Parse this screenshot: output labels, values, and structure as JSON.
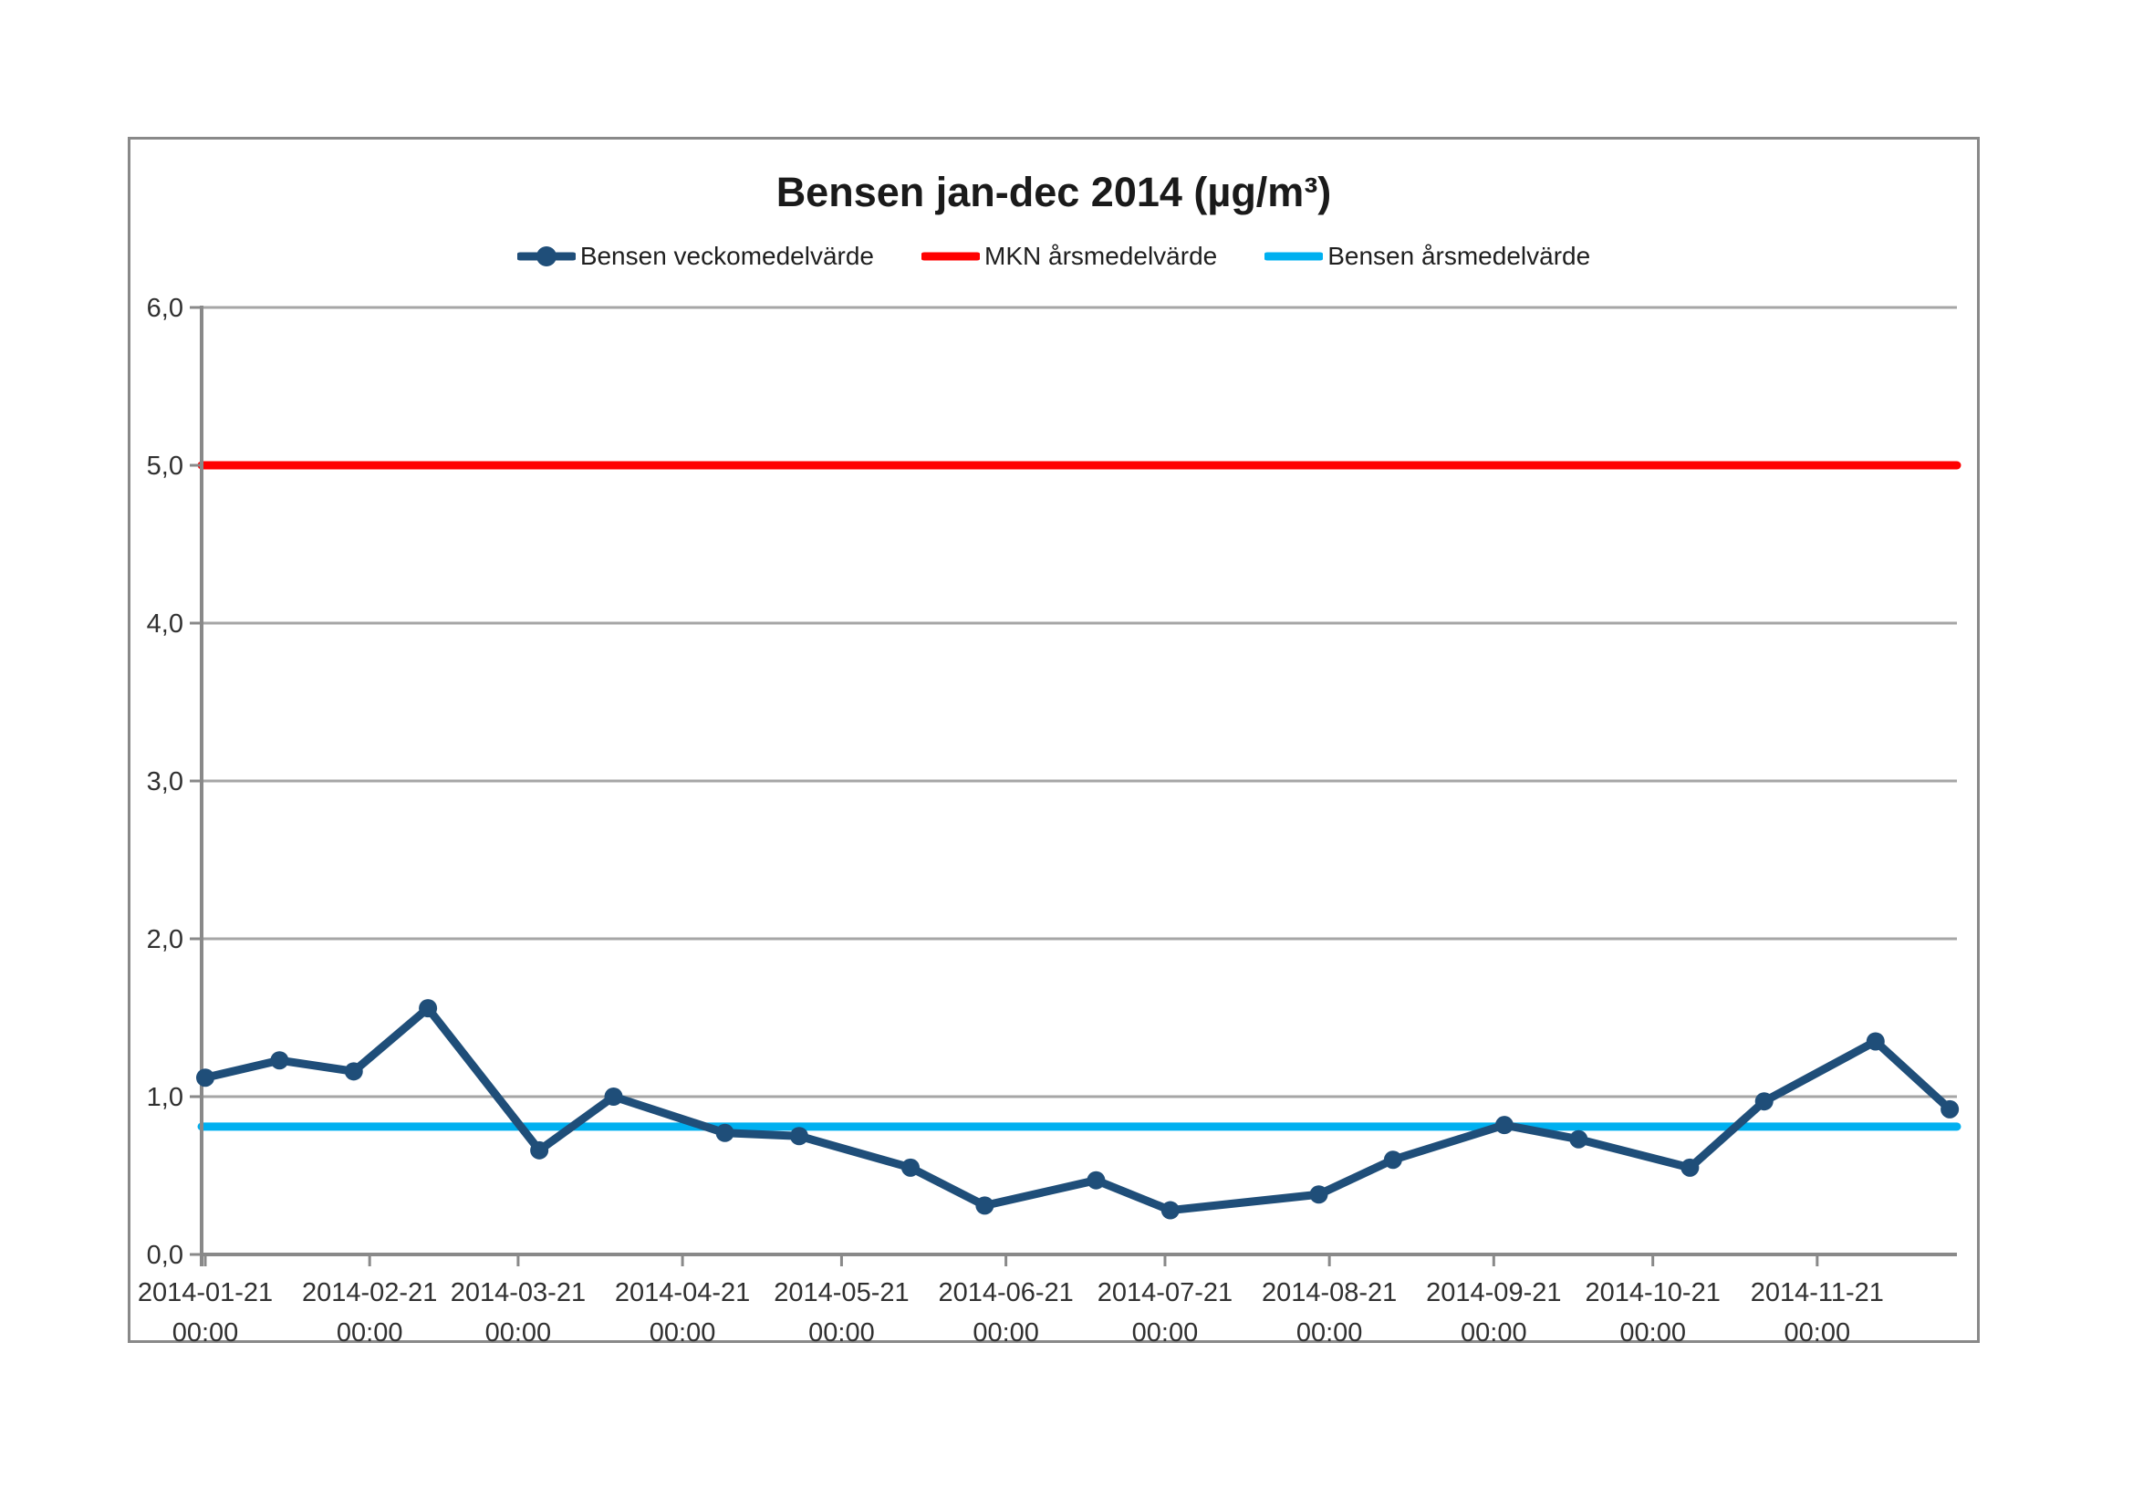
{
  "title": "Bensen jan-dec 2014 (µg/m³)",
  "legend": [
    {
      "label": "Bensen veckomedelvärde",
      "color": "#1F4E79",
      "marker": "line-with-circle"
    },
    {
      "label": "MKN årsmedelvärde",
      "color": "#FF0000",
      "marker": "line"
    },
    {
      "label": "Bensen årsmedelvärde",
      "color": "#00B0F0",
      "marker": "line"
    }
  ],
  "colors": {
    "series_weekly": "#1F4E79",
    "series_mkn": "#FF0000",
    "series_annual_mean": "#00B0F0",
    "gridline": "#A6A6A6",
    "axis": "#898989",
    "frame_border": "#898989",
    "tick_text": "#303030",
    "title_text": "#1A1A1A",
    "background": "#FFFFFF"
  },
  "chart_data": {
    "type": "line",
    "title": "Bensen jan-dec 2014 (µg/m³)",
    "xlabel": "",
    "ylabel": "",
    "grid": "horizontal",
    "legend_position": "top",
    "y_axis": {
      "min": 0,
      "max": 6,
      "step": 1,
      "tick_labels": [
        "0,0",
        "1,0",
        "2,0",
        "3,0",
        "4,0",
        "5,0",
        "6,0"
      ]
    },
    "x_axis": {
      "tick_dates": [
        "2014-01-21",
        "2014-02-21",
        "2014-03-21",
        "2014-04-21",
        "2014-05-21",
        "2014-06-21",
        "2014-07-21",
        "2014-08-21",
        "2014-09-21",
        "2014-10-21",
        "2014-11-21"
      ],
      "tick_days": [
        0,
        31,
        59,
        90,
        120,
        151,
        181,
        212,
        243,
        273,
        304
      ],
      "time_label": "00:00"
    },
    "series": [
      {
        "name": "Bensen veckomedelvärde",
        "type": "line-markers",
        "color": "#1F4E79",
        "dates": [
          "2014-01-21",
          "2014-02-04",
          "2014-02-18",
          "2014-03-04",
          "2014-03-25",
          "2014-04-08",
          "2014-04-29",
          "2014-05-13",
          "2014-06-03",
          "2014-06-17",
          "2014-07-08",
          "2014-07-22",
          "2014-08-19",
          "2014-09-02",
          "2014-09-23",
          "2014-10-07",
          "2014-10-28",
          "2014-11-11",
          "2014-12-02",
          "2014-12-16"
        ],
        "x_days": [
          0,
          14,
          28,
          42,
          63,
          77,
          98,
          112,
          133,
          147,
          168,
          182,
          210,
          224,
          245,
          259,
          280,
          294,
          315,
          329
        ],
        "values": [
          1.12,
          1.23,
          1.16,
          1.56,
          0.66,
          1.0,
          0.77,
          0.75,
          0.55,
          0.31,
          0.47,
          0.28,
          0.38,
          0.6,
          0.82,
          0.73,
          0.55,
          0.97,
          1.35,
          0.92
        ]
      },
      {
        "name": "MKN årsmedelvärde",
        "type": "hline",
        "color": "#FF0000",
        "value": 5.0
      },
      {
        "name": "Bensen årsmedelvärde",
        "type": "hline",
        "color": "#00B0F0",
        "value": 0.81
      }
    ]
  }
}
